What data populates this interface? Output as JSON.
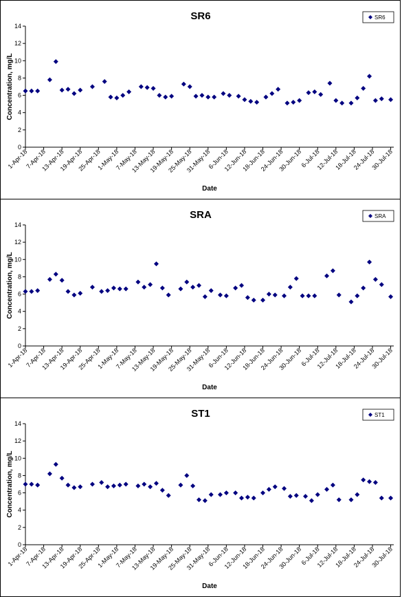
{
  "chart_data": [
    {
      "type": "scatter",
      "title": "SR6",
      "xlabel": "Date",
      "ylabel": "Concentration, mg/L",
      "ylim": [
        0,
        14
      ],
      "yticks": [
        0,
        2,
        4,
        6,
        8,
        10,
        12,
        14
      ],
      "xrange": [
        "2018-04-01",
        "2018-07-31"
      ],
      "xtick_labels": [
        "1-Apr-18",
        "7-Apr-18",
        "13-Apr-18",
        "19-Apr-18",
        "25-Apr-18",
        "1-May-18",
        "7-May-18",
        "13-May-18",
        "19-May-18",
        "25-May-18",
        "31-May-18",
        "6-Jun-18",
        "12-Jun-18",
        "18-Jun-18",
        "24-Jun-18",
        "30-Jun-18",
        "6-Jul-18",
        "12-Jul-18",
        "18-Jul-18",
        "24-Jul-18",
        "30-Jul-18"
      ],
      "legend": "top-right",
      "series": [
        {
          "name": "SR6",
          "color": "#000080",
          "points": [
            [
              "2018-04-01",
              6.5
            ],
            [
              "2018-04-03",
              6.5
            ],
            [
              "2018-04-05",
              6.5
            ],
            [
              "2018-04-09",
              7.8
            ],
            [
              "2018-04-11",
              9.9
            ],
            [
              "2018-04-13",
              6.6
            ],
            [
              "2018-04-15",
              6.7
            ],
            [
              "2018-04-17",
              6.2
            ],
            [
              "2018-04-19",
              6.6
            ],
            [
              "2018-04-23",
              7.0
            ],
            [
              "2018-04-27",
              7.6
            ],
            [
              "2018-04-29",
              5.8
            ],
            [
              "2018-05-01",
              5.7
            ],
            [
              "2018-05-03",
              6.0
            ],
            [
              "2018-05-05",
              6.4
            ],
            [
              "2018-05-09",
              7.0
            ],
            [
              "2018-05-11",
              6.9
            ],
            [
              "2018-05-13",
              6.8
            ],
            [
              "2018-05-15",
              6.0
            ],
            [
              "2018-05-17",
              5.8
            ],
            [
              "2018-05-19",
              5.9
            ],
            [
              "2018-05-23",
              7.3
            ],
            [
              "2018-05-25",
              7.0
            ],
            [
              "2018-05-27",
              5.9
            ],
            [
              "2018-05-29",
              6.0
            ],
            [
              "2018-05-31",
              5.8
            ],
            [
              "2018-06-02",
              5.8
            ],
            [
              "2018-06-05",
              6.2
            ],
            [
              "2018-06-07",
              6.0
            ],
            [
              "2018-06-10",
              5.9
            ],
            [
              "2018-06-12",
              5.5
            ],
            [
              "2018-06-14",
              5.3
            ],
            [
              "2018-06-16",
              5.2
            ],
            [
              "2018-06-19",
              5.8
            ],
            [
              "2018-06-21",
              6.2
            ],
            [
              "2018-06-23",
              6.7
            ],
            [
              "2018-06-26",
              5.1
            ],
            [
              "2018-06-28",
              5.2
            ],
            [
              "2018-06-30",
              5.4
            ],
            [
              "2018-07-03",
              6.3
            ],
            [
              "2018-07-05",
              6.4
            ],
            [
              "2018-07-07",
              6.1
            ],
            [
              "2018-07-10",
              7.4
            ],
            [
              "2018-07-12",
              5.4
            ],
            [
              "2018-07-14",
              5.1
            ],
            [
              "2018-07-17",
              5.1
            ],
            [
              "2018-07-19",
              5.7
            ],
            [
              "2018-07-21",
              6.8
            ],
            [
              "2018-07-23",
              8.2
            ],
            [
              "2018-07-25",
              5.4
            ],
            [
              "2018-07-27",
              5.6
            ],
            [
              "2018-07-30",
              5.5
            ]
          ]
        }
      ]
    },
    {
      "type": "scatter",
      "title": "SRA",
      "xlabel": "Date",
      "ylabel": "Concentration, mg/L",
      "ylim": [
        0,
        14
      ],
      "yticks": [
        0,
        2,
        4,
        6,
        8,
        10,
        12,
        14
      ],
      "xrange": [
        "2018-04-01",
        "2018-07-31"
      ],
      "xtick_labels": [
        "1-Apr-18",
        "7-Apr-18",
        "13-Apr-18",
        "19-Apr-18",
        "25-Apr-18",
        "1-May-18",
        "7-May-18",
        "13-May-18",
        "19-May-18",
        "25-May-18",
        "31-May-18",
        "6-Jun-18",
        "12-Jun-18",
        "18-Jun-18",
        "24-Jun-18",
        "30-Jun-18",
        "6-Jul-18",
        "12-Jul-18",
        "18-Jul-18",
        "24-Jul-18",
        "30-Jul-18"
      ],
      "legend": "top-right",
      "series": [
        {
          "name": "SRA",
          "color": "#000080",
          "points": [
            [
              "2018-04-01",
              6.3
            ],
            [
              "2018-04-03",
              6.3
            ],
            [
              "2018-04-05",
              6.4
            ],
            [
              "2018-04-09",
              7.7
            ],
            [
              "2018-04-11",
              8.3
            ],
            [
              "2018-04-13",
              7.6
            ],
            [
              "2018-04-15",
              6.3
            ],
            [
              "2018-04-17",
              5.9
            ],
            [
              "2018-04-19",
              6.1
            ],
            [
              "2018-04-23",
              6.8
            ],
            [
              "2018-04-26",
              6.3
            ],
            [
              "2018-04-28",
              6.4
            ],
            [
              "2018-04-30",
              6.7
            ],
            [
              "2018-05-02",
              6.6
            ],
            [
              "2018-05-04",
              6.6
            ],
            [
              "2018-05-08",
              7.4
            ],
            [
              "2018-05-10",
              6.8
            ],
            [
              "2018-05-12",
              7.1
            ],
            [
              "2018-05-14",
              9.5
            ],
            [
              "2018-05-16",
              6.7
            ],
            [
              "2018-05-18",
              5.9
            ],
            [
              "2018-05-22",
              6.6
            ],
            [
              "2018-05-24",
              7.4
            ],
            [
              "2018-05-26",
              6.8
            ],
            [
              "2018-05-28",
              7.0
            ],
            [
              "2018-05-30",
              5.7
            ],
            [
              "2018-06-01",
              6.4
            ],
            [
              "2018-06-04",
              5.9
            ],
            [
              "2018-06-06",
              5.8
            ],
            [
              "2018-06-09",
              6.7
            ],
            [
              "2018-06-11",
              7.0
            ],
            [
              "2018-06-13",
              5.6
            ],
            [
              "2018-06-15",
              5.3
            ],
            [
              "2018-06-18",
              5.3
            ],
            [
              "2018-06-20",
              6.0
            ],
            [
              "2018-06-22",
              5.9
            ],
            [
              "2018-06-25",
              5.8
            ],
            [
              "2018-06-27",
              6.8
            ],
            [
              "2018-06-29",
              7.8
            ],
            [
              "2018-07-01",
              5.8
            ],
            [
              "2018-07-03",
              5.8
            ],
            [
              "2018-07-05",
              5.8
            ],
            [
              "2018-07-09",
              8.1
            ],
            [
              "2018-07-11",
              8.7
            ],
            [
              "2018-07-13",
              5.9
            ],
            [
              "2018-07-17",
              5.1
            ],
            [
              "2018-07-19",
              5.8
            ],
            [
              "2018-07-21",
              6.7
            ],
            [
              "2018-07-23",
              9.7
            ],
            [
              "2018-07-25",
              7.7
            ],
            [
              "2018-07-27",
              7.1
            ],
            [
              "2018-07-30",
              5.7
            ]
          ]
        }
      ]
    },
    {
      "type": "scatter",
      "title": "ST1",
      "xlabel": "Date",
      "ylabel": "Concentration, mg/L",
      "ylim": [
        0,
        14
      ],
      "yticks": [
        0,
        2,
        4,
        6,
        8,
        10,
        12,
        14
      ],
      "xrange": [
        "2018-04-01",
        "2018-07-31"
      ],
      "xtick_labels": [
        "1-Apr-18",
        "7-Apr-18",
        "13-Apr-18",
        "19-Apr-18",
        "25-Apr-18",
        "1-May-18",
        "7-May-18",
        "13-May-18",
        "19-May-18",
        "25-May-18",
        "31-May-18",
        "6-Jun-18",
        "12-Jun-18",
        "18-Jun-18",
        "24-Jun-18",
        "30-Jun-18",
        "6-Jul-18",
        "12-Jul-18",
        "18-Jul-18",
        "24-Jul-18",
        "30-Jul-18"
      ],
      "legend": "top-right",
      "series": [
        {
          "name": "ST1",
          "color": "#000080",
          "points": [
            [
              "2018-04-01",
              7.0
            ],
            [
              "2018-04-03",
              7.0
            ],
            [
              "2018-04-05",
              6.9
            ],
            [
              "2018-04-09",
              8.2
            ],
            [
              "2018-04-11",
              9.3
            ],
            [
              "2018-04-13",
              7.7
            ],
            [
              "2018-04-15",
              6.9
            ],
            [
              "2018-04-17",
              6.6
            ],
            [
              "2018-04-19",
              6.7
            ],
            [
              "2018-04-23",
              7.0
            ],
            [
              "2018-04-26",
              7.2
            ],
            [
              "2018-04-28",
              6.7
            ],
            [
              "2018-04-30",
              6.8
            ],
            [
              "2018-05-02",
              6.9
            ],
            [
              "2018-05-04",
              7.0
            ],
            [
              "2018-05-08",
              6.8
            ],
            [
              "2018-05-10",
              7.0
            ],
            [
              "2018-05-12",
              6.7
            ],
            [
              "2018-05-14",
              7.1
            ],
            [
              "2018-05-16",
              6.3
            ],
            [
              "2018-05-18",
              5.7
            ],
            [
              "2018-05-22",
              6.9
            ],
            [
              "2018-05-24",
              8.0
            ],
            [
              "2018-05-26",
              6.8
            ],
            [
              "2018-05-28",
              5.2
            ],
            [
              "2018-05-30",
              5.1
            ],
            [
              "2018-06-01",
              5.8
            ],
            [
              "2018-06-04",
              5.8
            ],
            [
              "2018-06-06",
              6.0
            ],
            [
              "2018-06-09",
              6.0
            ],
            [
              "2018-06-11",
              5.4
            ],
            [
              "2018-06-13",
              5.5
            ],
            [
              "2018-06-15",
              5.4
            ],
            [
              "2018-06-18",
              6.0
            ],
            [
              "2018-06-20",
              6.4
            ],
            [
              "2018-06-22",
              6.7
            ],
            [
              "2018-06-25",
              6.5
            ],
            [
              "2018-06-27",
              5.6
            ],
            [
              "2018-06-29",
              5.7
            ],
            [
              "2018-07-02",
              5.6
            ],
            [
              "2018-07-04",
              5.1
            ],
            [
              "2018-07-06",
              5.8
            ],
            [
              "2018-07-09",
              6.4
            ],
            [
              "2018-07-11",
              6.9
            ],
            [
              "2018-07-13",
              5.2
            ],
            [
              "2018-07-17",
              5.2
            ],
            [
              "2018-07-19",
              5.8
            ],
            [
              "2018-07-21",
              7.5
            ],
            [
              "2018-07-23",
              7.3
            ],
            [
              "2018-07-25",
              7.2
            ],
            [
              "2018-07-27",
              5.4
            ],
            [
              "2018-07-30",
              5.4
            ]
          ]
        }
      ]
    }
  ]
}
